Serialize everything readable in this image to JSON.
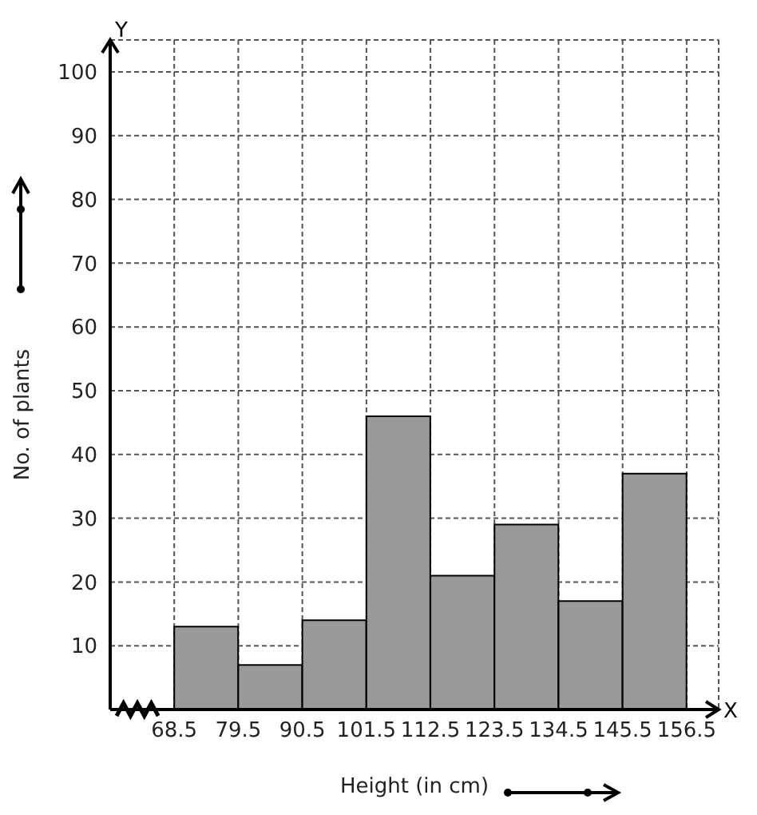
{
  "chart_data": {
    "type": "histogram",
    "xlabel": "Height (in cm)",
    "ylabel": "No. of plants",
    "annotations": [
      "X",
      "Y"
    ],
    "bins": [
      68.5,
      79.5,
      90.5,
      101.5,
      112.5,
      123.5,
      134.5,
      145.5,
      156.5
    ],
    "values": [
      13,
      7,
      14,
      46,
      21,
      29,
      17,
      37
    ],
    "color": "#999999",
    "xlim": [
      57.5,
      162
    ],
    "xticks": [
      68.5,
      79.5,
      90.5,
      101.5,
      112.5,
      123.5,
      134.5,
      145.5,
      156.5
    ],
    "ylim": [
      0,
      105
    ],
    "yticks": [
      10,
      20,
      30,
      40,
      50,
      60,
      70,
      80,
      90,
      100
    ],
    "grid": true
  }
}
